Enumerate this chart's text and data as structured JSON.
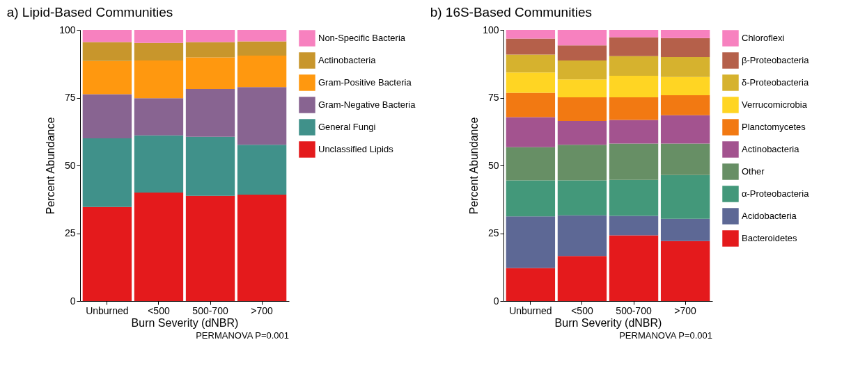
{
  "chart_data": [
    {
      "type": "bar",
      "title": "a) Lipid-Based Communities",
      "xlabel": "Burn Severity (dNBR)",
      "ylabel": "Percent Abundance",
      "categories": [
        "Unburned",
        "<500",
        "500-700",
        ">700"
      ],
      "stacked": true,
      "ylim": [
        0,
        100
      ],
      "yticks": [
        0,
        25,
        50,
        75,
        100
      ],
      "grid": false,
      "legend": "right",
      "annotations": [
        "PERMANOVA P=0.001"
      ],
      "series": [
        {
          "name": "Unclassified Lipids",
          "color": "#e41a1c",
          "values": [
            34.7,
            40.0,
            38.8,
            39.2
          ]
        },
        {
          "name": "General Fungi",
          "color": "#40918a",
          "values": [
            25.3,
            21.1,
            21.8,
            18.4
          ]
        },
        {
          "name": "Gram-Negative Bacteria",
          "color": "#886491",
          "values": [
            16.3,
            13.7,
            17.6,
            21.3
          ]
        },
        {
          "name": "Gram-Positive Bacteria",
          "color": "#ff980f",
          "values": [
            12.2,
            13.9,
            11.7,
            11.6
          ]
        },
        {
          "name": "Actinobacteria",
          "color": "#c8962c",
          "values": [
            7.0,
            6.5,
            5.6,
            5.3
          ]
        },
        {
          "name": "Non-Specific Bacteria",
          "color": "#f781bf",
          "values": [
            4.5,
            4.8,
            4.5,
            4.2
          ]
        }
      ]
    },
    {
      "type": "bar",
      "title": "b) 16S-Based Communities",
      "xlabel": "Burn Severity (dNBR)",
      "ylabel": "Percent Abundance",
      "categories": [
        "Unburned",
        "<500",
        "500-700",
        ">700"
      ],
      "stacked": true,
      "ylim": [
        0,
        100
      ],
      "yticks": [
        0,
        25,
        50,
        75,
        100
      ],
      "grid": false,
      "legend": "right",
      "annotations": [
        "PERMANOVA P=0.001"
      ],
      "series": [
        {
          "name": "Bacteroidetes",
          "color": "#e41a1c",
          "values": [
            12.2,
            16.6,
            24.2,
            22.1
          ]
        },
        {
          "name": "Acidobacteria",
          "color": "#5d6895",
          "values": [
            19.0,
            15.0,
            7.2,
            8.2
          ]
        },
        {
          "name": "α-Proteobacteria",
          "color": "#43987a",
          "values": [
            13.3,
            12.9,
            13.3,
            16.2
          ]
        },
        {
          "name": "Other",
          "color": "#678f65",
          "values": [
            12.2,
            13.1,
            13.4,
            11.6
          ]
        },
        {
          "name": "Actinobacteria",
          "color": "#a3538f",
          "values": [
            11.1,
            8.8,
            8.7,
            10.4
          ]
        },
        {
          "name": "Planctomycetes",
          "color": "#f27912",
          "values": [
            9.0,
            8.7,
            8.3,
            7.4
          ]
        },
        {
          "name": "Verrucomicrobia",
          "color": "#ffd523",
          "values": [
            7.5,
            6.6,
            8.0,
            6.7
          ]
        },
        {
          "name": "δ-Proteobacteria",
          "color": "#d6b22e",
          "values": [
            6.6,
            7.0,
            7.2,
            7.4
          ]
        },
        {
          "name": "β-Proteobacteria",
          "color": "#b5604a",
          "values": [
            5.9,
            5.6,
            7.0,
            7.0
          ]
        },
        {
          "name": "Chloroflexi",
          "color": "#f781bf",
          "values": [
            3.2,
            5.7,
            2.7,
            3.0
          ]
        }
      ]
    }
  ]
}
